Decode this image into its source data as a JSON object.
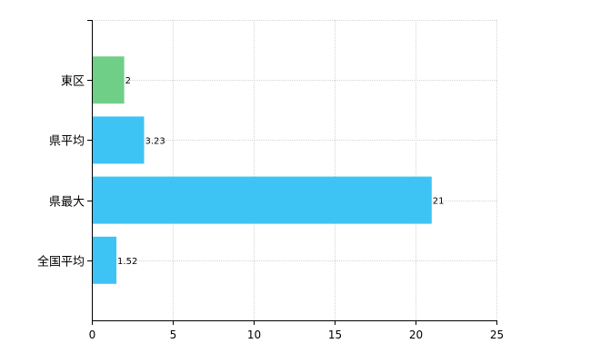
{
  "chart_data": {
    "type": "bar",
    "orientation": "horizontal",
    "categories": [
      "東区",
      "県平均",
      "県最大",
      "全国平均"
    ],
    "values": [
      2,
      3.23,
      21,
      1.52
    ],
    "data_labels": [
      "2",
      "3.23",
      "21",
      "1.52"
    ],
    "bar_colors": [
      "#6fcf87",
      "#3ec3f5",
      "#3ec3f5",
      "#3ec3f5"
    ],
    "xlim": [
      0,
      25
    ],
    "x_ticks": [
      0,
      5,
      10,
      15,
      20,
      25
    ],
    "x_tick_labels": [
      "0",
      "5",
      "10",
      "15",
      "20",
      "25"
    ],
    "grid": true,
    "legend": "none",
    "title": "",
    "xlabel": "",
    "ylabel": ""
  }
}
